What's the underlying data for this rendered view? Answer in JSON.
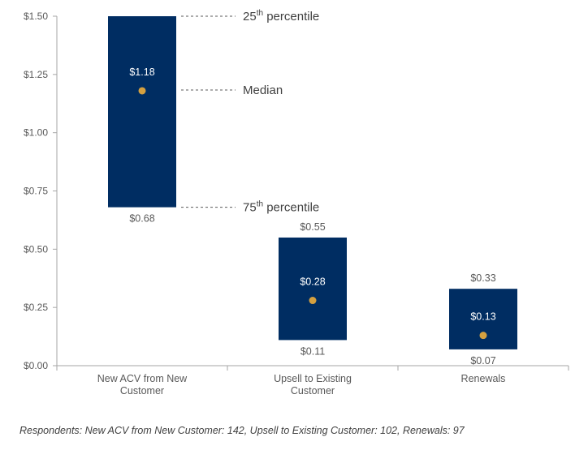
{
  "chart_data": {
    "type": "bar",
    "subtype": "floating-range-with-median",
    "categories": [
      [
        "New ACV from New",
        "Customer"
      ],
      [
        "Upsell to Existing",
        "Customer"
      ],
      [
        "Renewals"
      ]
    ],
    "series": [
      {
        "name": "25th percentile",
        "values": [
          1.5,
          0.55,
          0.33
        ]
      },
      {
        "name": "Median",
        "values": [
          1.18,
          0.28,
          0.13
        ]
      },
      {
        "name": "75th percentile",
        "values": [
          0.68,
          0.11,
          0.07
        ]
      }
    ],
    "value_labels": {
      "top": [
        "",
        "$0.55",
        "$0.33"
      ],
      "median": [
        "$1.18",
        "$0.28",
        "$0.13"
      ],
      "bottom": [
        "$0.68",
        "$0.11",
        "$0.07"
      ]
    },
    "y_ticks": [
      "$0.00",
      "$0.25",
      "$0.50",
      "$0.75",
      "$1.00",
      "$1.25",
      "$1.50"
    ],
    "y_tick_values": [
      0,
      0.25,
      0.5,
      0.75,
      1.0,
      1.25,
      1.5
    ],
    "ylim": [
      0,
      1.5
    ],
    "annotations": [
      {
        "base": "25",
        "sup": "th",
        "text": " percentile",
        "target": "top"
      },
      {
        "base": "Median",
        "sup": "",
        "text": "",
        "target": "median"
      },
      {
        "base": "75",
        "sup": "th",
        "text": " percentile",
        "target": "bottom"
      }
    ],
    "colors": {
      "bar": "#002D62",
      "median_dot": "#D4A040",
      "axis": "#A6A6A6",
      "text": "#595959"
    },
    "grid": false,
    "legend": "none"
  },
  "footnote": "Respondents: New ACV from New Customer: 142, Upsell to Existing Customer: 102, Renewals: 97"
}
